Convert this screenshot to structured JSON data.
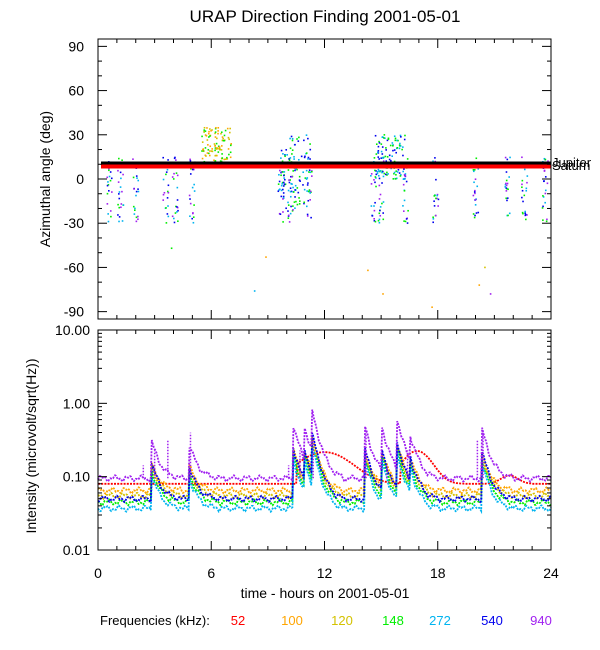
{
  "title": "URAP Direction Finding  2001-05-01",
  "chart_data": [
    {
      "type": "scatter",
      "panel": "top",
      "ylabel": "Azimuthal angle (deg)",
      "xlim": [
        0,
        24
      ],
      "ylim": [
        -95,
        95
      ],
      "yticks": [
        -90,
        -60,
        -30,
        0,
        30,
        60,
        90
      ],
      "reference_lines": [
        {
          "name": "Jupiter",
          "value": 10.5,
          "color": "#000000"
        },
        {
          "name": "Saturn",
          "value": 8.5,
          "color": "#ff0000"
        }
      ],
      "clusters": [
        {
          "x": 6.3,
          "y_range": [
            10,
            35
          ],
          "colors": [
            "green",
            "orange",
            "yellow"
          ]
        },
        {
          "x": 10.5,
          "y_range": [
            -20,
            30
          ],
          "colors": [
            "green",
            "blue",
            "cyan"
          ]
        },
        {
          "x": 15.5,
          "y_range": [
            0,
            30
          ],
          "colors": [
            "green",
            "cyan",
            "blue"
          ]
        }
      ]
    },
    {
      "type": "line",
      "panel": "bottom",
      "xlabel": "time - hours on 2001-05-01",
      "ylabel": "Intensity (microvolt/sqrt(Hz))",
      "xlim": [
        0,
        24
      ],
      "xticks": [
        0,
        6,
        12,
        18,
        24
      ],
      "ylim": [
        0.01,
        10.0
      ],
      "yscale": "log",
      "yticklabels": [
        "0.01",
        "0.10",
        "1.00",
        "10.00"
      ],
      "legend_title": "Frequencies (kHz):",
      "series": [
        {
          "name": "52",
          "color": "#ff0000",
          "baseline": 0.08
        },
        {
          "name": "100",
          "color": "#ffa500",
          "baseline": 0.065
        },
        {
          "name": "120",
          "color": "#d4c200",
          "baseline": 0.055
        },
        {
          "name": "148",
          "color": "#00ee00",
          "baseline": 0.045
        },
        {
          "name": "272",
          "color": "#00b4f0",
          "baseline": 0.037
        },
        {
          "name": "540",
          "color": "#0000ee",
          "baseline": 0.05
        },
        {
          "name": "940",
          "color": "#a020f0",
          "baseline": 0.095
        }
      ]
    }
  ]
}
